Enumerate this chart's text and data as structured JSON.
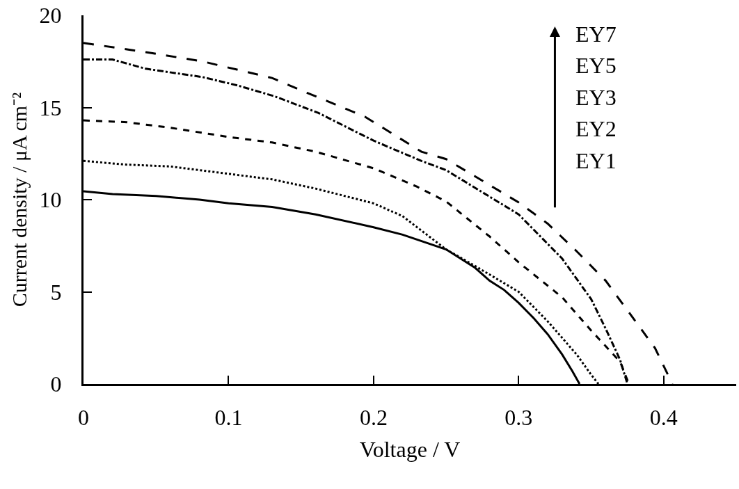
{
  "chart_data": {
    "type": "line",
    "xlabel": "Voltage / V",
    "ylabel": "Current density / μA cm⁻²",
    "xlim": [
      0,
      0.45
    ],
    "xticks": [
      0,
      0.1,
      0.2,
      0.3,
      0.4
    ],
    "ylim": [
      0,
      20
    ],
    "yticks": [
      0,
      5,
      10,
      15,
      20
    ],
    "marker": "none",
    "annotations": [
      "EY7",
      "EY5",
      "EY3",
      "EY2",
      "EY1"
    ],
    "series": [
      {
        "color": "#000000",
        "line_style": "solid",
        "x": [
          0,
          0.02,
          0.05,
          0.08,
          0.1,
          0.13,
          0.16,
          0.2,
          0.22,
          0.25,
          0.27,
          0.28,
          0.29,
          0.3,
          0.31,
          0.32,
          0.33,
          0.337,
          0.342
        ],
        "values": [
          10.45,
          10.3,
          10.2,
          10.0,
          9.8,
          9.6,
          9.2,
          8.5,
          8.1,
          7.3,
          6.3,
          5.6,
          5.1,
          4.4,
          3.6,
          2.7,
          1.6,
          0.7,
          0
        ]
      },
      {
        "color": "#000000",
        "line_style": "dotted",
        "x": [
          0,
          0.03,
          0.06,
          0.1,
          0.13,
          0.16,
          0.2,
          0.22,
          0.25,
          0.27,
          0.3,
          0.32,
          0.34,
          0.35,
          0.355
        ],
        "values": [
          12.1,
          11.9,
          11.8,
          11.4,
          11.1,
          10.6,
          9.8,
          9.1,
          7.3,
          6.4,
          5.0,
          3.4,
          1.6,
          0.5,
          0
        ]
      },
      {
        "color": "#000000",
        "line_style": "dashed",
        "x": [
          0,
          0.03,
          0.06,
          0.1,
          0.13,
          0.16,
          0.2,
          0.23,
          0.25,
          0.28,
          0.3,
          0.33,
          0.35,
          0.37,
          0.376
        ],
        "values": [
          14.3,
          14.2,
          13.9,
          13.4,
          13.1,
          12.6,
          11.7,
          10.7,
          9.9,
          8.0,
          6.6,
          4.7,
          2.9,
          1.2,
          0
        ]
      },
      {
        "color": "#000000",
        "line_style": "dashdot",
        "x": [
          0,
          0.02,
          0.043,
          0.082,
          0.106,
          0.132,
          0.162,
          0.2,
          0.233,
          0.25,
          0.3,
          0.33,
          0.35,
          0.36,
          0.37,
          0.375
        ],
        "values": [
          17.6,
          17.6,
          17.1,
          16.65,
          16.2,
          15.6,
          14.7,
          13.2,
          12.1,
          11.6,
          9.2,
          6.8,
          4.6,
          3.0,
          1.3,
          0
        ]
      },
      {
        "color": "#000000",
        "line_style": "longdash",
        "x": [
          0,
          0.043,
          0.082,
          0.13,
          0.154,
          0.194,
          0.233,
          0.25,
          0.3,
          0.32,
          0.34,
          0.36,
          0.38,
          0.394,
          0.406
        ],
        "values": [
          18.5,
          18.0,
          17.5,
          16.6,
          15.8,
          14.5,
          12.6,
          12.2,
          9.85,
          8.7,
          7.2,
          5.6,
          3.46,
          1.95,
          0
        ]
      }
    ]
  }
}
